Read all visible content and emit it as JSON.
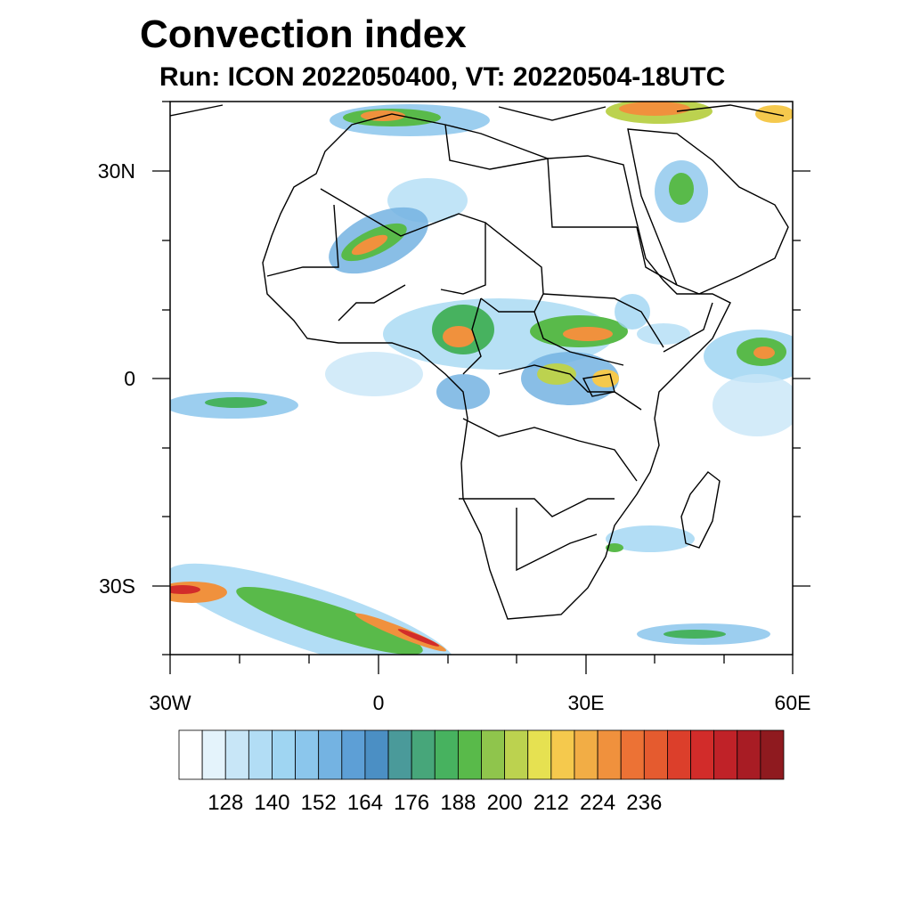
{
  "title": "Convection index",
  "subtitle": "Run: ICON 2022050400,  VT: 20220504-18UTC",
  "map": {
    "region": "Africa",
    "lon_range": [
      -30,
      60
    ],
    "lat_range": [
      -40,
      40
    ],
    "lat_labels": [
      "30N",
      "0",
      "30S"
    ],
    "lon_labels": [
      "30W",
      "0",
      "30E",
      "60E"
    ],
    "land_color": "#ffffff",
    "border_color": "#000000",
    "frame_color": "#000000"
  },
  "colorbar": {
    "colors": [
      "#ffffff",
      "#e4f3fb",
      "#c8e6f7",
      "#b2ddf5",
      "#9fd5f2",
      "#8bc6ec",
      "#74b3e2",
      "#5d9fd6",
      "#4b8fc4",
      "#4a9a9a",
      "#47a67a",
      "#47b25f",
      "#59ba4a",
      "#8fc54c",
      "#bcd24f",
      "#e6e151",
      "#f5c94d",
      "#f2ad45",
      "#f0913d",
      "#ec7235",
      "#e55b2f",
      "#dc3f2b",
      "#d22c2a",
      "#c02228",
      "#a81c24",
      "#8f1a1f"
    ],
    "tick_labels": [
      "128",
      "140",
      "152",
      "164",
      "176",
      "188",
      "200",
      "212",
      "224",
      "236"
    ]
  }
}
